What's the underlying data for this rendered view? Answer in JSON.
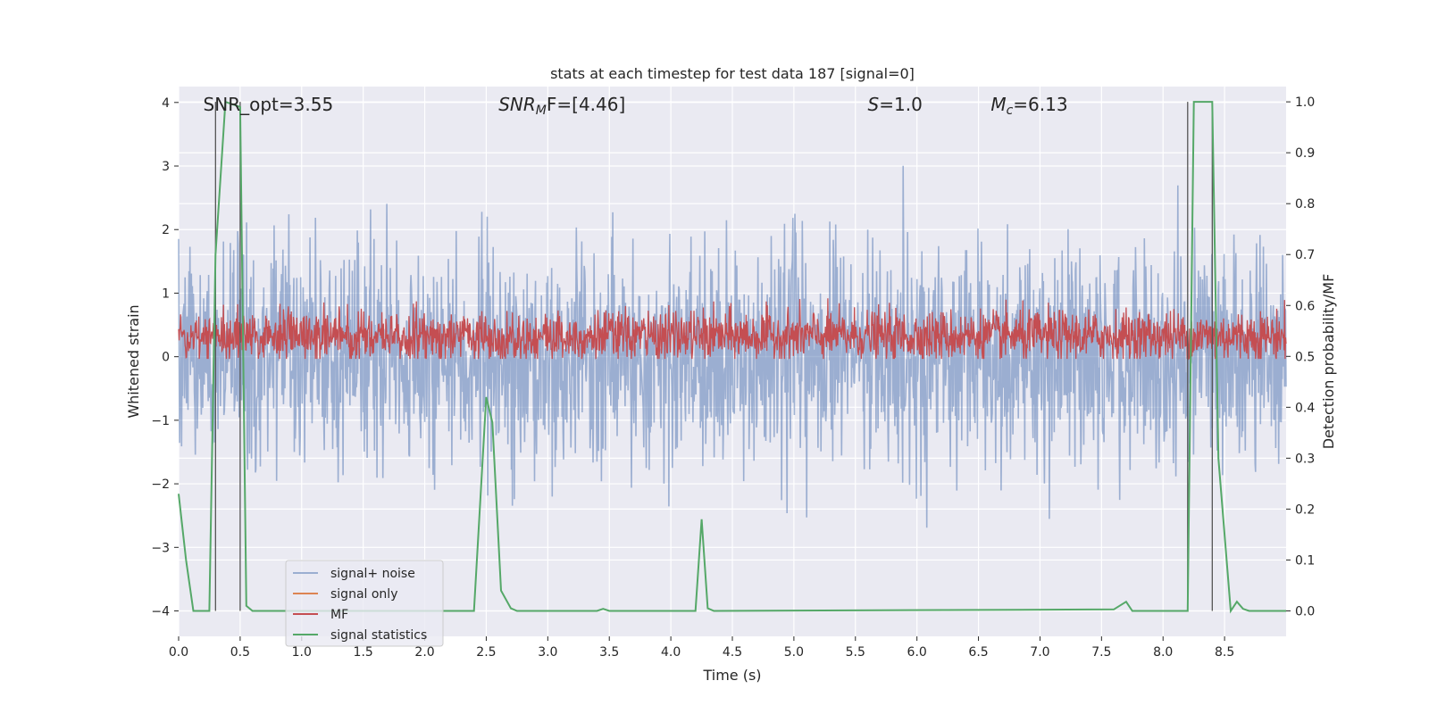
{
  "chart_data": {
    "type": "line",
    "title": "stats at each timestep for test data 187 [signal=0]",
    "xlabel": "Time (s)",
    "ylabel_left": "Whitened strain",
    "ylabel_right": "Detection probability/MF",
    "xlim": [
      0.0,
      9.0
    ],
    "ylim_left": [
      -4.4,
      4.25
    ],
    "ylim_right": [
      -0.05,
      1.03
    ],
    "grid": true,
    "x_ticks": [
      0.0,
      0.5,
      1.0,
      1.5,
      2.0,
      2.5,
      3.0,
      3.5,
      4.0,
      4.5,
      5.0,
      5.5,
      6.0,
      6.5,
      7.0,
      7.5,
      8.0,
      8.5
    ],
    "x_tick_labels": [
      "0.0",
      "0.5",
      "1.0",
      "1.5",
      "2.0",
      "2.5",
      "3.0",
      "3.5",
      "4.0",
      "4.5",
      "5.0",
      "5.5",
      "6.0",
      "6.5",
      "7.0",
      "7.5",
      "8.0",
      "8.5"
    ],
    "y_left_ticks": [
      4,
      3,
      2,
      1,
      0,
      -1,
      -2,
      -3,
      -4
    ],
    "y_left_tick_labels": [
      "4",
      "3",
      "2",
      "1",
      "0",
      "−1",
      "−2",
      "−3",
      "−4"
    ],
    "y_right_ticks": [
      1.0,
      0.9,
      0.8,
      0.7,
      0.6,
      0.5,
      0.4,
      0.3,
      0.2,
      0.1,
      0.0
    ],
    "y_right_tick_labels": [
      "1.0",
      "0.9",
      "0.8",
      "0.7",
      "0.6",
      "0.5",
      "0.4",
      "0.3",
      "0.2",
      "0.1",
      "0.0"
    ],
    "annotations": [
      {
        "text": "SNR_opt=3.55",
        "x": 0.2
      },
      {
        "text": "SNR_MF=[4.46]",
        "main": "SNR",
        "sub": "M",
        "tail": "F=[4.46]",
        "x": 2.6
      },
      {
        "text": "S=1.0",
        "main": "S",
        "tail": "=1.0",
        "x": 5.6
      },
      {
        "text": "M_c=6.13",
        "main": "M",
        "sub": "c",
        "tail": "=6.13",
        "x": 6.6
      }
    ],
    "vertical_lines": [
      0.3,
      0.5,
      8.2,
      8.4
    ],
    "legend_position": "lower-left",
    "series": [
      {
        "name": "signal+ noise",
        "color": "#4c72b0",
        "alpha": 0.5,
        "axis": "left",
        "envelope": {
          "mean": 0.0,
          "std": 0.85,
          "max_peak": 3.95,
          "min_peak": -4.05,
          "dt": 0.004
        }
      },
      {
        "name": "signal only",
        "color": "#dd8452",
        "axis": "left",
        "values": []
      },
      {
        "name": "MF",
        "color": "#c44e52",
        "axis": "right",
        "envelope": {
          "mean": 0.54,
          "std": 0.025,
          "peak": 0.62,
          "dt": 0.004
        }
      },
      {
        "name": "signal statistics",
        "color": "#55a868",
        "axis": "right",
        "x": [
          0.0,
          0.06,
          0.12,
          0.25,
          0.3,
          0.38,
          0.5,
          0.55,
          0.6,
          2.4,
          2.5,
          2.55,
          2.62,
          2.7,
          2.75,
          3.4,
          3.45,
          3.5,
          4.2,
          4.25,
          4.3,
          4.35,
          7.6,
          7.7,
          7.75,
          8.2,
          8.25,
          8.3,
          8.4,
          8.45,
          8.55,
          8.6,
          8.65,
          8.7,
          9.0
        ],
        "y": [
          0.23,
          0.1,
          0.0,
          0.0,
          0.7,
          1.0,
          0.99,
          0.01,
          0.0,
          0.0,
          0.42,
          0.37,
          0.04,
          0.005,
          0.0,
          0.0,
          0.004,
          0.0,
          0.0,
          0.18,
          0.005,
          0.0,
          0.003,
          0.018,
          0.0,
          0.0,
          1.0,
          1.0,
          1.0,
          0.3,
          0.0,
          0.018,
          0.004,
          0.0,
          0.0
        ]
      }
    ]
  }
}
